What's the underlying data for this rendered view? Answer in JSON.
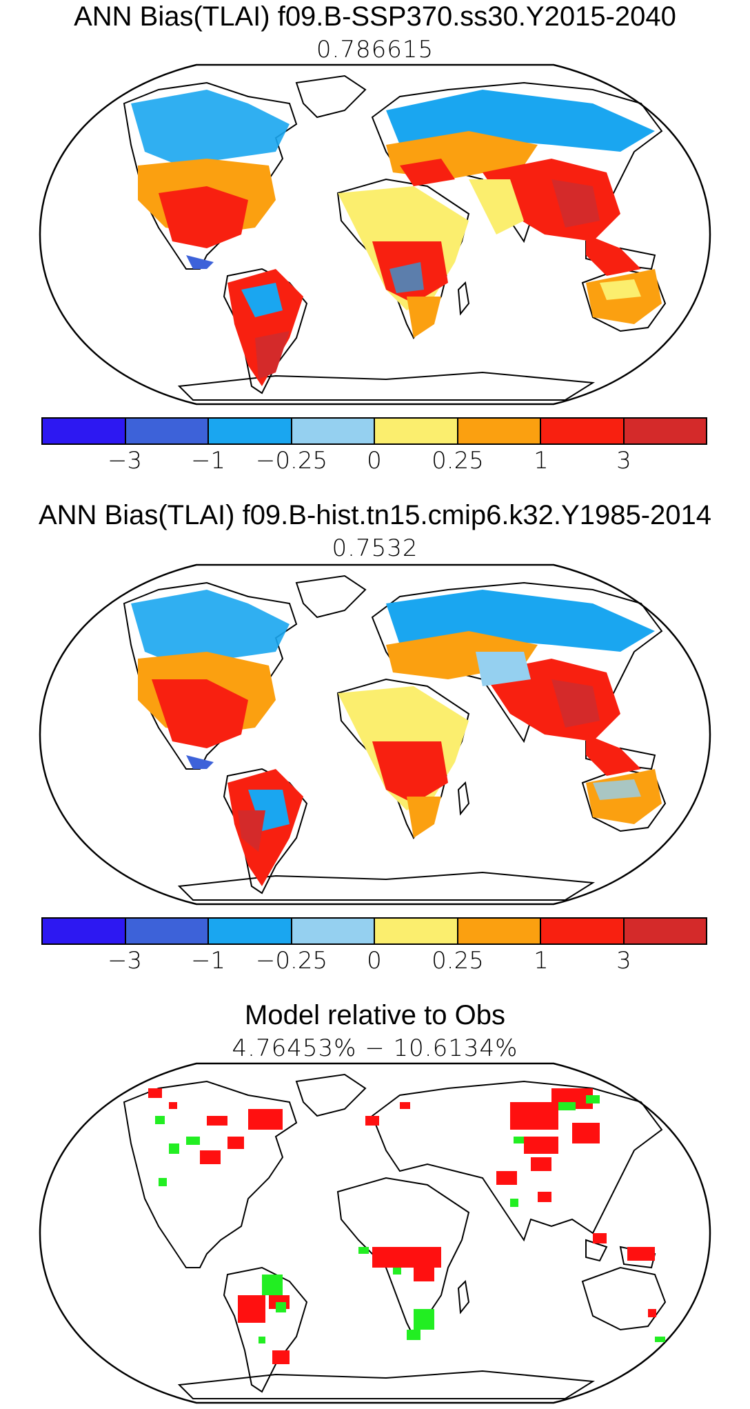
{
  "panels": [
    {
      "title": "ANN Bias(TLAI) f09.B-SSP370.ss30.Y2015-2040",
      "subtitle": "0.786615"
    },
    {
      "title": "ANN Bias(TLAI) f09.B-hist.tn15.cmip6.k32.Y1985-2014",
      "subtitle": "0.7532"
    },
    {
      "title": "Model relative to Obs",
      "subtitle": "4.76453% − 10.6134%"
    }
  ],
  "colorbar": {
    "colors": [
      "#2d18f2",
      "#3d62d9",
      "#1aa6f0",
      "#95d0f0",
      "#fbee6e",
      "#fba010",
      "#f82010",
      "#d42a2a"
    ],
    "tick_labels": [
      "−3",
      "−1",
      "−0.25",
      "0",
      "0.25",
      "1",
      "3"
    ]
  },
  "significance_colors": {
    "worse": "#ff1010",
    "better": "#22ee22"
  }
}
